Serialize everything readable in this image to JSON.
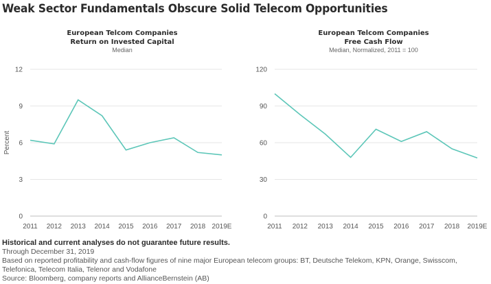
{
  "title": "Weak Sector Fundamentals Obscure Solid Telecom Opportunities",
  "chart_data": [
    {
      "type": "line",
      "title": "European Telcom Companies",
      "title2": "Return on Invested Capital",
      "subtitle": "Median",
      "xlabel": "",
      "ylabel": "Percent",
      "categories": [
        "2011",
        "2012",
        "2013",
        "2014",
        "2015",
        "2016",
        "2017",
        "2018",
        "2019E"
      ],
      "series": [
        {
          "name": "ROIC",
          "values": [
            6.2,
            5.9,
            9.5,
            8.2,
            5.4,
            6.0,
            6.4,
            5.2,
            5.0
          ]
        }
      ],
      "ylim": [
        0,
        12
      ],
      "yticks": [
        0,
        3,
        6,
        9,
        12
      ],
      "grid": true,
      "line_color": "#5cc6b8"
    },
    {
      "type": "line",
      "title": "European Telcom Companies",
      "title2": "Free Cash Flow",
      "subtitle": "Median, Normalized, 2011 = 100",
      "xlabel": "",
      "ylabel": "",
      "categories": [
        "2011",
        "2012",
        "2013",
        "2014",
        "2015",
        "2016",
        "2017",
        "2018",
        "2019E"
      ],
      "series": [
        {
          "name": "Free Cash Flow",
          "values": [
            100,
            83,
            67,
            48,
            71,
            61,
            69,
            55,
            47.5
          ]
        }
      ],
      "ylim": [
        0,
        120
      ],
      "yticks": [
        0,
        30,
        60,
        90,
        120
      ],
      "grid": true,
      "line_color": "#5cc6b8"
    }
  ],
  "footer": {
    "disclaimer": "Historical and current analyses do not guarantee future results.",
    "through": "Through December 31, 2019",
    "basis": "Based on reported profitability and cash-flow figures of nine major European telecom groups: BT, Deutsche Telekom, KPN, Orange, Swisscom, Telefonica, Telecom Italia, Telenor and Vodafone",
    "source": "Source: Bloomberg, company reports and AllianceBernstein (AB)"
  }
}
